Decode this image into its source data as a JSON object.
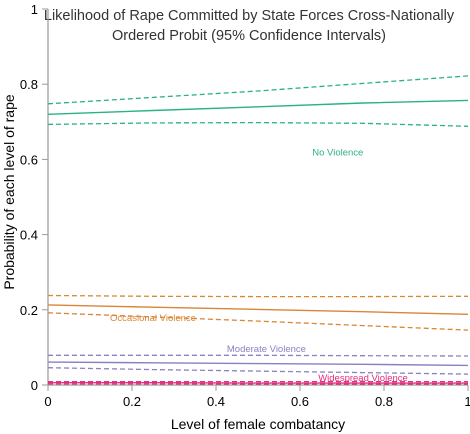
{
  "chart_data": {
    "type": "line",
    "title": "Likelihood of Rape Committed by State Forces Cross-Nationally",
    "subtitle": "Ordered Probit (95% Confidence Intervals)",
    "xlabel": "Level of female combatancy",
    "ylabel": "Probability of each level of rape",
    "xlim": [
      0,
      1
    ],
    "ylim": [
      0,
      1
    ],
    "x_ticks": [
      "0",
      "0.2",
      "0.4",
      "0.6",
      "0.8",
      "1"
    ],
    "y_ticks": [
      "0",
      "0.2",
      "0.4",
      "0.6",
      "0.8",
      "1"
    ],
    "grid": false,
    "x": [
      0,
      0.25,
      0.5,
      0.75,
      1
    ],
    "series": [
      {
        "name": "No Violence",
        "color": "#2bb187",
        "values": [
          0.72,
          0.73,
          0.74,
          0.75,
          0.757
        ],
        "ci_upper": [
          0.748,
          0.765,
          0.782,
          0.802,
          0.822
        ],
        "ci_lower": [
          0.693,
          0.697,
          0.698,
          0.696,
          0.688
        ]
      },
      {
        "name": "Occasional Violence",
        "color": "#d98637",
        "values": [
          0.213,
          0.207,
          0.201,
          0.195,
          0.188
        ],
        "ci_upper": [
          0.238,
          0.236,
          0.235,
          0.235,
          0.236
        ],
        "ci_lower": [
          0.192,
          0.181,
          0.17,
          0.158,
          0.146
        ]
      },
      {
        "name": "Moderate Violence",
        "color": "#8c7fc2",
        "values": [
          0.061,
          0.059,
          0.057,
          0.055,
          0.052
        ],
        "ci_upper": [
          0.079,
          0.079,
          0.079,
          0.078,
          0.077
        ],
        "ci_lower": [
          0.046,
          0.041,
          0.037,
          0.033,
          0.029
        ]
      },
      {
        "name": "Widespread Violence",
        "color": "#e0307f",
        "values": [
          0.006,
          0.006,
          0.005,
          0.005,
          0.005
        ],
        "ci_upper": [
          0.009,
          0.009,
          0.009,
          0.009,
          0.009
        ],
        "ci_lower": [
          0.003,
          0.003,
          0.002,
          0.002,
          0.002
        ]
      }
    ],
    "label_positions": [
      {
        "series": "No Violence",
        "x": 0.69,
        "y": 0.61
      },
      {
        "series": "Occasional Violence",
        "x": 0.25,
        "y": 0.17
      },
      {
        "series": "Moderate Violence",
        "x": 0.52,
        "y": 0.088
      },
      {
        "series": "Widespread Violence",
        "x": 0.75,
        "y": 0.01
      }
    ]
  }
}
